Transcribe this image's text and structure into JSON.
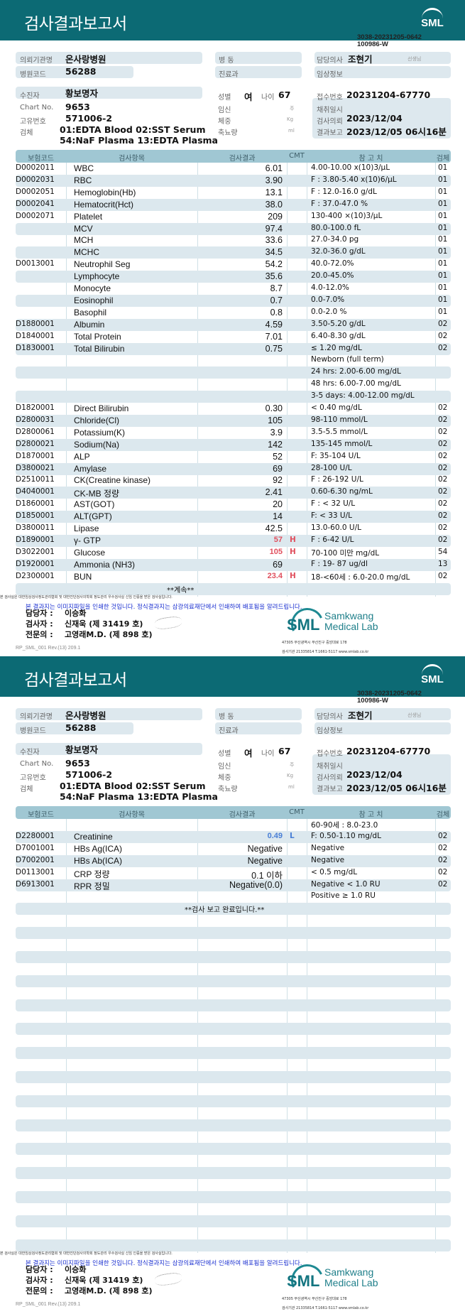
{
  "colors": {
    "header": "#0c6a74",
    "table_header": "#a0c7d3",
    "row_shade": "#dce8ee",
    "high": "#e0505e",
    "low": "#4a7fd6",
    "notice": "#1a2fd0"
  },
  "report": {
    "title": "검사결과보고서",
    "logo": "SML",
    "doc_id_1": "3038-20231205-0642",
    "doc_id_2": "100986-W",
    "labels": {
      "institution": "의뢰기관명",
      "hospital_code": "병원코드",
      "ward": "병   동",
      "department": "진료과",
      "doctor": "담당의사",
      "doctor_suffix": "선생님",
      "clinical": "임상정보",
      "patient": "수진자",
      "chart": "Chart No.",
      "unique": "고유번호",
      "specimen": "검체",
      "sex": "성별",
      "age": "나이",
      "pregnancy": "임신",
      "pregnancy_unit": "주",
      "weight": "체중",
      "weight_unit": "Kg",
      "urine": "축뇨량",
      "urine_unit": "ml",
      "receipt": "접수번호",
      "collected": "채취일시",
      "requested": "검사의뢰",
      "reported": "결과보고"
    },
    "values": {
      "institution": "온사랑병원",
      "hospital_code": "56288",
      "doctor": "조현기",
      "patient": "황보명자",
      "chart": "9653",
      "unique": "571006-2",
      "specimen_1": "01:EDTA Blood 02:SST Serum",
      "specimen_2": "54:NaF Plasma 13:EDTA Plasma",
      "sex": "여",
      "age": "67",
      "receipt": "20231204-67770",
      "requested": "2023/12/04",
      "reported": "2023/12/05 06시16분"
    },
    "columns": [
      "보험코드",
      "검사항목",
      "검사결과",
      "CMT",
      "참 고 치",
      "검체"
    ],
    "footer": {
      "tiny": "본 검사실은 대한임상검사정도관리협회 및 대한진단검사의학회 정도관리 우수검사실 신임 인증을 받은 검사실입니다.",
      "notice": "본 결과지는 이미지파일을 인쇄한 것입니다. 정식결과지는 삼광의료재단에서 인쇄하여 배포됨을 알려드립니다.",
      "staff": [
        {
          "role": "담당자 :",
          "name": "이승화"
        },
        {
          "role": "검사자 :",
          "name": "신재욱 (제 31419 호)"
        },
        {
          "role": "전문의 :",
          "name": "고영래M.D. (제 898 호)"
        }
      ],
      "brand_1": "Samkwang",
      "brand_2": "Medical Lab",
      "address": "47305 부산광역시 부산진구 중앙대로 178",
      "contact": "검사기관 21335814 T.1661-5117 www.smlab.co.kr",
      "rev": "RP_SML_001 Rev.(13) 209.1"
    }
  },
  "pages": [
    {
      "rows": [
        {
          "code": "D0002011",
          "item": "WBC",
          "result": "6.01",
          "cmt": "",
          "ref": "4.00-10.00 x(10)3/μL",
          "spec": "01"
        },
        {
          "code": "D0002031",
          "item": "RBC",
          "result": "3.90",
          "cmt": "",
          "ref": "F : 3.80-5.40 x(10)6/μL",
          "spec": "01"
        },
        {
          "code": "D0002051",
          "item": "Hemoglobin(Hb)",
          "result": "13.1",
          "cmt": "",
          "ref": "F : 12.0-16.0 g/dL",
          "spec": "01"
        },
        {
          "code": "D0002041",
          "item": "Hematocrit(Hct)",
          "result": "38.0",
          "cmt": "",
          "ref": "F : 37.0-47.0 %",
          "spec": "01"
        },
        {
          "code": "D0002071",
          "item": "Platelet",
          "result": "209",
          "cmt": "",
          "ref": "130-400 ×(10)3/μL",
          "spec": "01"
        },
        {
          "code": "",
          "item": "MCV",
          "result": "97.4",
          "cmt": "",
          "ref": "80.0-100.0 fL",
          "spec": "01"
        },
        {
          "code": "",
          "item": "MCH",
          "result": "33.6",
          "cmt": "",
          "ref": "27.0-34.0 pg",
          "spec": "01"
        },
        {
          "code": "",
          "item": "MCHC",
          "result": "34.5",
          "cmt": "",
          "ref": "32.0-36.0 g/dL",
          "spec": "01"
        },
        {
          "code": "D0013001",
          "item": "Neutrophil Seg",
          "result": "54.2",
          "cmt": "",
          "ref": "40.0-72.0%",
          "spec": "01"
        },
        {
          "code": "",
          "item": "Lymphocyte",
          "result": "35.6",
          "cmt": "",
          "ref": "20.0-45.0%",
          "spec": "01"
        },
        {
          "code": "",
          "item": "Monocyte",
          "result": "8.7",
          "cmt": "",
          "ref": "4.0-12.0%",
          "spec": "01"
        },
        {
          "code": "",
          "item": "Eosinophil",
          "result": "0.7",
          "cmt": "",
          "ref": "0.0-7.0%",
          "spec": "01"
        },
        {
          "code": "",
          "item": "Basophil",
          "result": "0.8",
          "cmt": "",
          "ref": "0.0-2.0 %",
          "spec": "01"
        },
        {
          "code": "D1880001",
          "item": "Albumin",
          "result": "4.59",
          "cmt": "",
          "ref": "3.50-5.20 g/dL",
          "spec": "02"
        },
        {
          "code": "D1840001",
          "item": "Total Protein",
          "result": "7.01",
          "cmt": "",
          "ref": "6.40-8.30 g/dL",
          "spec": "02"
        },
        {
          "code": "D1830001",
          "item": "Total Bilirubin",
          "result": "0.75",
          "cmt": "",
          "ref": "≤ 1.20 mg/dL",
          "spec": "02"
        },
        {
          "code": "",
          "item": "",
          "result": "",
          "cmt": "",
          "ref": "Newborn (full term)",
          "spec": ""
        },
        {
          "code": "",
          "item": "",
          "result": "",
          "cmt": "",
          "ref": "24 hrs: 2.00-6.00 mg/dL",
          "spec": ""
        },
        {
          "code": "",
          "item": "",
          "result": "",
          "cmt": "",
          "ref": "48 hrs: 6.00-7.00 mg/dL",
          "spec": ""
        },
        {
          "code": "",
          "item": "",
          "result": "",
          "cmt": "",
          "ref": "3-5 days: 4.00-12.00 mg/dL",
          "spec": ""
        },
        {
          "code": "D1820001",
          "item": "Direct Bilirubin",
          "result": "0.30",
          "cmt": "",
          "ref": "< 0.40 mg/dL",
          "spec": "02"
        },
        {
          "code": "D2800031",
          "item": "Chloride(Cl)",
          "result": "105",
          "cmt": "",
          "ref": "98-110 mmol/L",
          "spec": "02"
        },
        {
          "code": "D2800061",
          "item": "Potassium(K)",
          "result": "3.9",
          "cmt": "",
          "ref": "3.5-5.5 mmol/L",
          "spec": "02"
        },
        {
          "code": "D2800021",
          "item": "Sodium(Na)",
          "result": "142",
          "cmt": "",
          "ref": "135-145 mmol/L",
          "spec": "02"
        },
        {
          "code": "D1870001",
          "item": "ALP",
          "result": "52",
          "cmt": "",
          "ref": "F: 35-104 U/L",
          "spec": "02"
        },
        {
          "code": "D3800021",
          "item": "Amylase",
          "result": "69",
          "cmt": "",
          "ref": "28-100 U/L",
          "spec": "02"
        },
        {
          "code": "D2510011",
          "item": "CK(Creatine kinase)",
          "result": "92",
          "cmt": "",
          "ref": "F : 26-192 U/L",
          "spec": "02"
        },
        {
          "code": "D4040001",
          "item": "CK-MB 정량",
          "result": "2.41",
          "cmt": "",
          "ref": "0.60-6.30 ng/mL",
          "spec": "02"
        },
        {
          "code": "D1860001",
          "item": "AST(GOT)",
          "result": "20",
          "cmt": "",
          "ref": "F : < 32 U/L",
          "spec": "02"
        },
        {
          "code": "D1850001",
          "item": "ALT(GPT)",
          "result": "14",
          "cmt": "",
          "ref": "F: < 33 U/L",
          "spec": "02"
        },
        {
          "code": "D3800011",
          "item": "Lipase",
          "result": "42.5",
          "cmt": "",
          "ref": "13.0-60.0 U/L",
          "spec": "02"
        },
        {
          "code": "D1890001",
          "item": "γ- GTP",
          "result": "57",
          "cmt": "H",
          "ref": "F : 6-42 U/L",
          "spec": "02"
        },
        {
          "code": "D3022001",
          "item": "Glucose",
          "result": "105",
          "cmt": "H",
          "ref": "70-100 미만 mg/dL",
          "spec": "54"
        },
        {
          "code": "D1920001",
          "item": "Ammonia (NH3)",
          "result": "69",
          "cmt": "",
          "ref": "F : 19- 87 ug/dl",
          "spec": "13"
        },
        {
          "code": "D2300001",
          "item": "BUN",
          "result": "23.4",
          "cmt": "H",
          "ref": "18-<60세 : 6.0-20.0 mg/dL",
          "spec": "02"
        }
      ],
      "end_note": "**계속**"
    },
    {
      "rows": [
        {
          "code": "",
          "item": "",
          "result": "",
          "cmt": "",
          "ref": "60-90세 : 8.0-23.0",
          "spec": ""
        },
        {
          "code": "D2280001",
          "item": "Creatinine",
          "result": "0.49",
          "cmt": "L",
          "ref": "F: 0.50-1.10 mg/dL",
          "spec": "02"
        },
        {
          "code": "D7001001",
          "item": "HBs Ag(ICA)",
          "result": "Negative",
          "cmt": "",
          "ref": "Negative",
          "spec": "02"
        },
        {
          "code": "D7002001",
          "item": "HBs Ab(ICA)",
          "result": "Negative",
          "cmt": "",
          "ref": "Negative",
          "spec": "02"
        },
        {
          "code": "D0113001",
          "item": "CRP 정량",
          "result": "0.1 이하",
          "cmt": "",
          "ref": "< 0.5 mg/dL",
          "spec": "02"
        },
        {
          "code": "D6913001",
          "item": "RPR 정밀",
          "result": "Negative(0.0)",
          "cmt": "",
          "ref": "Negative < 1.0 RU",
          "spec": "02"
        },
        {
          "code": "",
          "item": "",
          "result": "",
          "cmt": "",
          "ref": "Positive ≥ 1.0 RU",
          "spec": ""
        }
      ],
      "end_note": "**검사  보고  완료입니다.**"
    }
  ]
}
